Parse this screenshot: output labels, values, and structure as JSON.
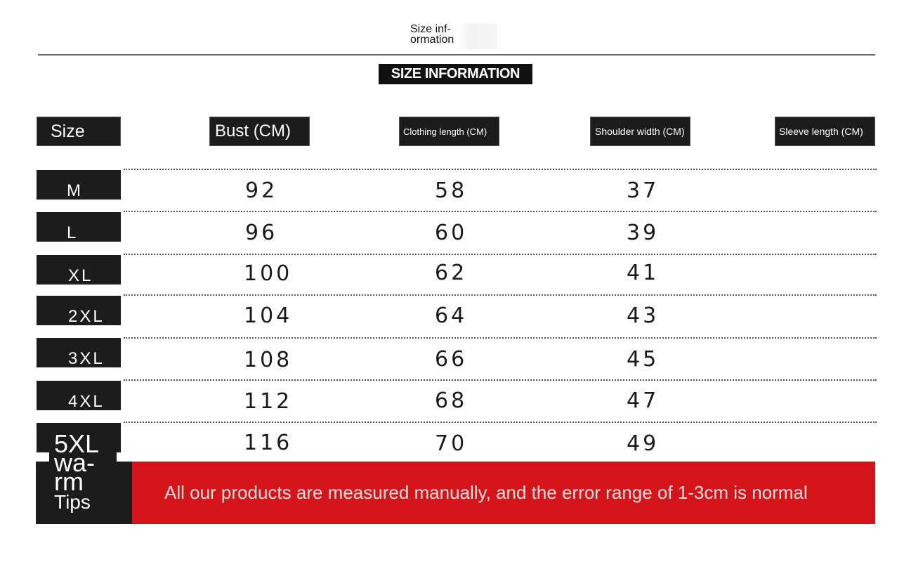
{
  "top_label": {
    "line1": "Size inf-",
    "line2": "ormation"
  },
  "banner": "SIZE INFORMATION",
  "headers": {
    "size": "Size",
    "bust": "Bust (CM)",
    "clothing_length": "Clothing length (CM)",
    "shoulder_width": "Shoulder width (CM)",
    "sleeve_length": "Sleeve length (CM)"
  },
  "rows": [
    {
      "size": "M",
      "bust": "92",
      "length": "58",
      "shoulder": "37",
      "sleeve": ""
    },
    {
      "size": "L",
      "bust": "96",
      "length": "60",
      "shoulder": "39",
      "sleeve": ""
    },
    {
      "size": "XL",
      "bust": "100",
      "length": "62",
      "shoulder": "41",
      "sleeve": ""
    },
    {
      "size": "2XL",
      "bust": "104",
      "length": "64",
      "shoulder": "43",
      "sleeve": ""
    },
    {
      "size": "3XL",
      "bust": "108",
      "length": "66",
      "shoulder": "45",
      "sleeve": ""
    },
    {
      "size": "4XL",
      "bust": "112",
      "length": "68",
      "shoulder": "47",
      "sleeve": ""
    },
    {
      "size": "5XL",
      "bust": "116",
      "length": "70",
      "shoulder": "49",
      "sleeve": ""
    }
  ],
  "tips": {
    "title_line1": "5XL",
    "title_line2": "wa-",
    "title_line3": "rm",
    "subtitle": "Tips",
    "message": "All our products are measured manually, and the error range of 1-3cm is normal"
  },
  "colors": {
    "dark": "#1c1c1c",
    "accent_red": "#d41418"
  }
}
